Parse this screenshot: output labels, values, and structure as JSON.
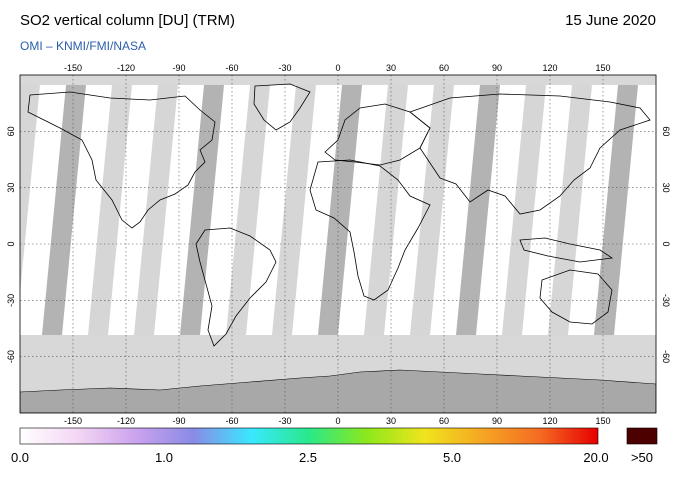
{
  "header": {
    "title": "SO2 vertical column [DU] (TRM)",
    "date": "15 June 2020",
    "credit": "OMI  –  KNMI/FMI/NASA"
  },
  "map": {
    "lon_ticks": [
      -150,
      -120,
      -90,
      -60,
      -30,
      0,
      30,
      60,
      90,
      120,
      150
    ],
    "lat_ticks": [
      60,
      30,
      0,
      -30,
      -60
    ],
    "lon_range": [
      -180,
      180
    ],
    "lat_range": [
      -90,
      90
    ],
    "grid": true,
    "colors": {
      "land_fill": "#ffffff",
      "no_data": "#d8d8d8",
      "antarctica": "#a8a8a8",
      "swath_gap": "#cfcfcf",
      "dark_swath": "#a6a6a6"
    }
  },
  "colorbar": {
    "labels": [
      "0.0",
      "1.0",
      "2.5",
      "5.0",
      "20.0"
    ],
    "overflow_label": ">50",
    "overflow_color": "#4d0000",
    "stops": [
      "#ffffff",
      "#f4d6f4",
      "#cba3ee",
      "#8a8ae6",
      "#39e8ff",
      "#29e88a",
      "#8ce81c",
      "#f0e41c",
      "#f5a623",
      "#f56a23",
      "#e60000"
    ]
  }
}
